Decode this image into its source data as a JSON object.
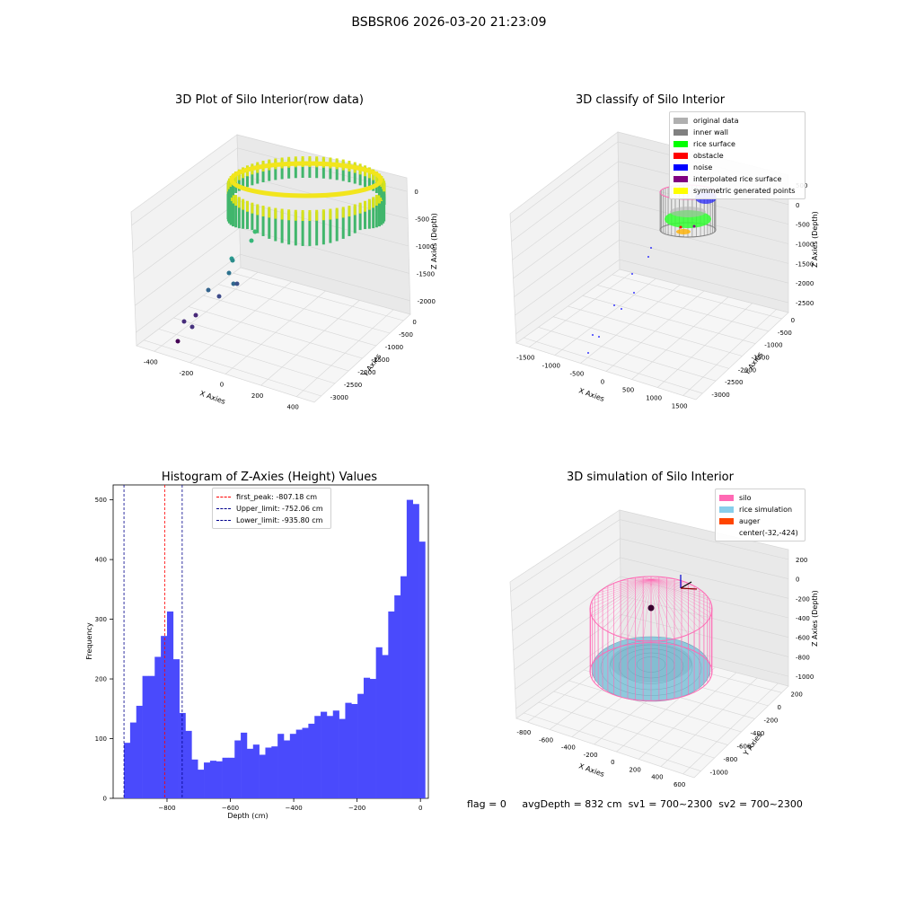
{
  "suptitle": "BSBSR06 2026-03-20 21:23:09",
  "status": {
    "flag": "flag = 0",
    "avg_depth": "avgDepth = 832 cm",
    "sv1": "sv1 = 700~2300",
    "sv2": "sv2 = 700~2300"
  },
  "panels": {
    "raw": {
      "title": "3D Plot of Silo Interior(row data)",
      "xlabel": "X Axies",
      "ylabel": "Y Axies",
      "zlabel": "Z Axies (Depth)",
      "xticks": [
        "-400",
        "-200",
        "0",
        "200",
        "400"
      ],
      "yticks": [
        "0",
        "-500",
        "-1000",
        "-1500",
        "-2000",
        "-2500",
        "-3000"
      ],
      "zticks": [
        "0",
        "-500",
        "-1000",
        "-1500",
        "-2000"
      ]
    },
    "classify": {
      "title": "3D classify of Silo Interior",
      "xlabel": "X Axies",
      "ylabel": "Y Axies",
      "zlabel": "Z Axies (Depth)",
      "xticks": [
        "-1500",
        "-1000",
        "-500",
        "0",
        "500",
        "1000",
        "1500"
      ],
      "yticks": [
        "0",
        "-500",
        "-1000",
        "-1500",
        "-2000",
        "-2500",
        "-3000"
      ],
      "zticks": [
        "500",
        "0",
        "-500",
        "-1000",
        "-1500",
        "-2000",
        "-2500"
      ],
      "legend": [
        {
          "label": "original data",
          "color": "#b0b0b0"
        },
        {
          "label": "inner wall",
          "color": "#808080"
        },
        {
          "label": "rice surface",
          "color": "#00ff00"
        },
        {
          "label": "obstacle",
          "color": "#ff0000"
        },
        {
          "label": "noise",
          "color": "#0000ff"
        },
        {
          "label": "interpolated rice surface",
          "color": "#800080"
        },
        {
          "label": "symmetric generated points",
          "color": "#ffff00"
        }
      ]
    },
    "simulation": {
      "title": "3D simulation of Silo Interior",
      "xlabel": "X Axies",
      "ylabel": "Y Axies",
      "zlabel": "Z Axies (Depth)",
      "xticks": [
        "-800",
        "-600",
        "-400",
        "-200",
        "0",
        "200",
        "400",
        "600"
      ],
      "yticks": [
        "200",
        "0",
        "-200",
        "-400",
        "-600",
        "-800",
        "-1000"
      ],
      "zticks": [
        "200",
        "0",
        "-200",
        "-400",
        "-600",
        "-800",
        "-1000"
      ],
      "legend": [
        {
          "label": "silo",
          "color": "#ff69b4"
        },
        {
          "label": "rice simulation",
          "color": "#87ceeb"
        },
        {
          "label": "auger",
          "color": "#ff4500"
        },
        {
          "label": "center(-32,-424)",
          "color": ""
        }
      ]
    }
  },
  "chart_data": {
    "type": "bar",
    "title": "Histogram of Z-Axies (Height) Values",
    "xlabel": "Depth (cm)",
    "ylabel": "Frequency",
    "xlim": [
      -970,
      25
    ],
    "ylim": [
      0,
      525
    ],
    "bin_width": 19.4,
    "bin_start": -935.8,
    "xticks": [
      -800,
      -600,
      -400,
      -200,
      0
    ],
    "yticks": [
      0,
      100,
      200,
      300,
      400,
      500
    ],
    "values": [
      93,
      127,
      155,
      205,
      205,
      237,
      272,
      313,
      233,
      143,
      113,
      65,
      48,
      60,
      63,
      62,
      68,
      68,
      97,
      110,
      83,
      90,
      73,
      85,
      87,
      108,
      97,
      108,
      115,
      118,
      125,
      138,
      145,
      138,
      147,
      133,
      160,
      158,
      175,
      202,
      200,
      253,
      240,
      313,
      340,
      372,
      500,
      493,
      430
    ],
    "lines": [
      {
        "label": "first_peak: -807.18 cm",
        "value": -807.18,
        "color": "#ff0000"
      },
      {
        "label": "Upper_limit: -752.06 cm",
        "value": -752.06,
        "color": "#00008b"
      },
      {
        "label": "Lower_limit: -935.80 cm",
        "value": -935.8,
        "color": "#00008b"
      }
    ],
    "bar_color": "#4a4afc"
  }
}
